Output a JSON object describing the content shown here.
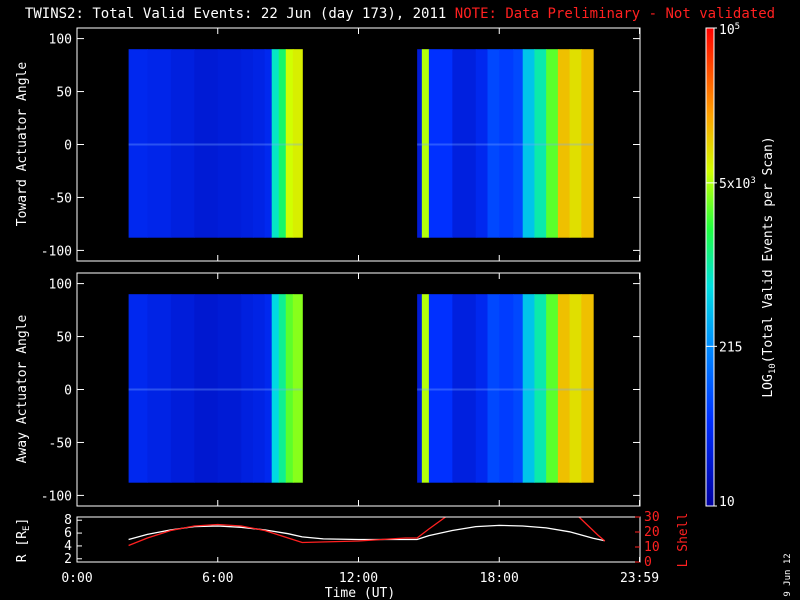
{
  "title": {
    "main": "TWINS2: Total Valid Events: 22 Jun (day 173), 2011",
    "note": "NOTE: Data Preliminary - Not validated"
  },
  "datestamp": "9 Jun 12",
  "colors": {
    "note": "#ff2020",
    "panel_border": "#ffffff",
    "lshell_line": "#ff2020",
    "r_line": "#ffffff"
  },
  "chart_data": [
    {
      "type": "heatmap",
      "name": "toward",
      "ylabel": "Toward Actuator Angle",
      "ylim": [
        -110,
        110
      ],
      "yticks": [
        100,
        50,
        0,
        -50,
        -100
      ],
      "xlim": [
        0,
        24
      ],
      "segments": [
        {
          "x": [
            2.2,
            3,
            4,
            5,
            6,
            7,
            7.5,
            8,
            8.3,
            8.6,
            8.9,
            9.2,
            9.6
          ],
          "level": [
            0.15,
            0.14,
            0.12,
            0.1,
            0.11,
            0.12,
            0.13,
            0.15,
            0.48,
            0.55,
            0.7,
            0.72,
            0.72
          ],
          "y_range": [
            -88,
            90
          ]
        },
        {
          "x": [
            14.5,
            14.7,
            15,
            16,
            17,
            17.5,
            18,
            18.6,
            19,
            19.5,
            20,
            20.5,
            21,
            21.5,
            22
          ],
          "level": [
            0.1,
            0.68,
            0.18,
            0.12,
            0.15,
            0.22,
            0.2,
            0.22,
            0.42,
            0.5,
            0.62,
            0.78,
            0.74,
            0.78,
            0.76
          ],
          "y_range": [
            -88,
            90
          ]
        }
      ]
    },
    {
      "type": "heatmap",
      "name": "away",
      "ylabel": "Away Actuator Angle",
      "ylim": [
        -110,
        110
      ],
      "yticks": [
        100,
        50,
        0,
        -50,
        -100
      ],
      "xlim": [
        0,
        24
      ],
      "segments": [
        {
          "x": [
            2.2,
            3,
            4,
            5,
            6,
            7,
            7.5,
            8,
            8.3,
            8.6,
            8.9,
            9.2,
            9.6
          ],
          "level": [
            0.15,
            0.13,
            0.11,
            0.09,
            0.1,
            0.12,
            0.13,
            0.15,
            0.45,
            0.52,
            0.62,
            0.65,
            0.65
          ],
          "y_range": [
            -88,
            90
          ]
        },
        {
          "x": [
            14.5,
            14.7,
            15,
            16,
            17,
            17.5,
            18,
            18.6,
            19,
            19.5,
            20,
            20.5,
            21,
            21.5,
            22
          ],
          "level": [
            0.1,
            0.68,
            0.18,
            0.12,
            0.15,
            0.22,
            0.2,
            0.22,
            0.42,
            0.5,
            0.62,
            0.78,
            0.74,
            0.78,
            0.76
          ],
          "y_range": [
            -88,
            90
          ]
        }
      ]
    },
    {
      "type": "line",
      "name": "orbit",
      "xlabel": "Time (UT)",
      "xticks": [
        "0:00",
        "6:00",
        "12:00",
        "18:00",
        "23:59"
      ],
      "xtick_hours": [
        0,
        6,
        12,
        18,
        23.98
      ],
      "xlim": [
        0,
        24
      ],
      "left_axis": {
        "label": "R [R",
        "label_sub": "E",
        "label_end": "]",
        "ticks": [
          8,
          6,
          4,
          2
        ],
        "ylim": [
          1.5,
          8.5
        ]
      },
      "right_axis": {
        "label": "L Shell",
        "ticks": [
          30,
          20,
          10,
          0
        ],
        "ylim": [
          0,
          30
        ]
      },
      "series": [
        {
          "axis": "left",
          "x": [
            2.2,
            3,
            4,
            5,
            6,
            7,
            8,
            9,
            9.6,
            10.5,
            12,
            13,
            14,
            14.5,
            15,
            16,
            17,
            18,
            19,
            20,
            21,
            22,
            22.5
          ],
          "y": [
            5.0,
            5.8,
            6.5,
            7.0,
            7.1,
            6.9,
            6.5,
            5.9,
            5.4,
            5.1,
            5.0,
            5.0,
            5.0,
            5.0,
            5.6,
            6.4,
            7.0,
            7.2,
            7.1,
            6.8,
            6.2,
            5.2,
            4.8
          ]
        },
        {
          "axis": "right",
          "x": [
            2.2,
            3,
            4,
            5,
            6,
            7,
            8,
            9,
            9.6,
            12,
            14,
            14.5,
            15,
            15.8,
            16.1
          ],
          "y": [
            11,
            16,
            21,
            24,
            25,
            24,
            21,
            16,
            13,
            14,
            16,
            16,
            22,
            31,
            34
          ],
          "x2": [
            21.4,
            21.8,
            22.2,
            22.5
          ],
          "y2": [
            30,
            24,
            18,
            14
          ]
        }
      ]
    },
    {
      "type": "colorbar",
      "ylabel": "LOG",
      "ylabel_sub": "10",
      "ylabel_end": "(Total Valid Events per Scan)",
      "ticks": [
        {
          "label": "10",
          "frac": 0.0
        },
        {
          "label": "215",
          "frac": 0.334
        },
        {
          "label": "5x10",
          "sup": "3",
          "frac": 0.676
        },
        {
          "label": "10",
          "sup": "5",
          "frac": 1.0
        }
      ]
    }
  ]
}
